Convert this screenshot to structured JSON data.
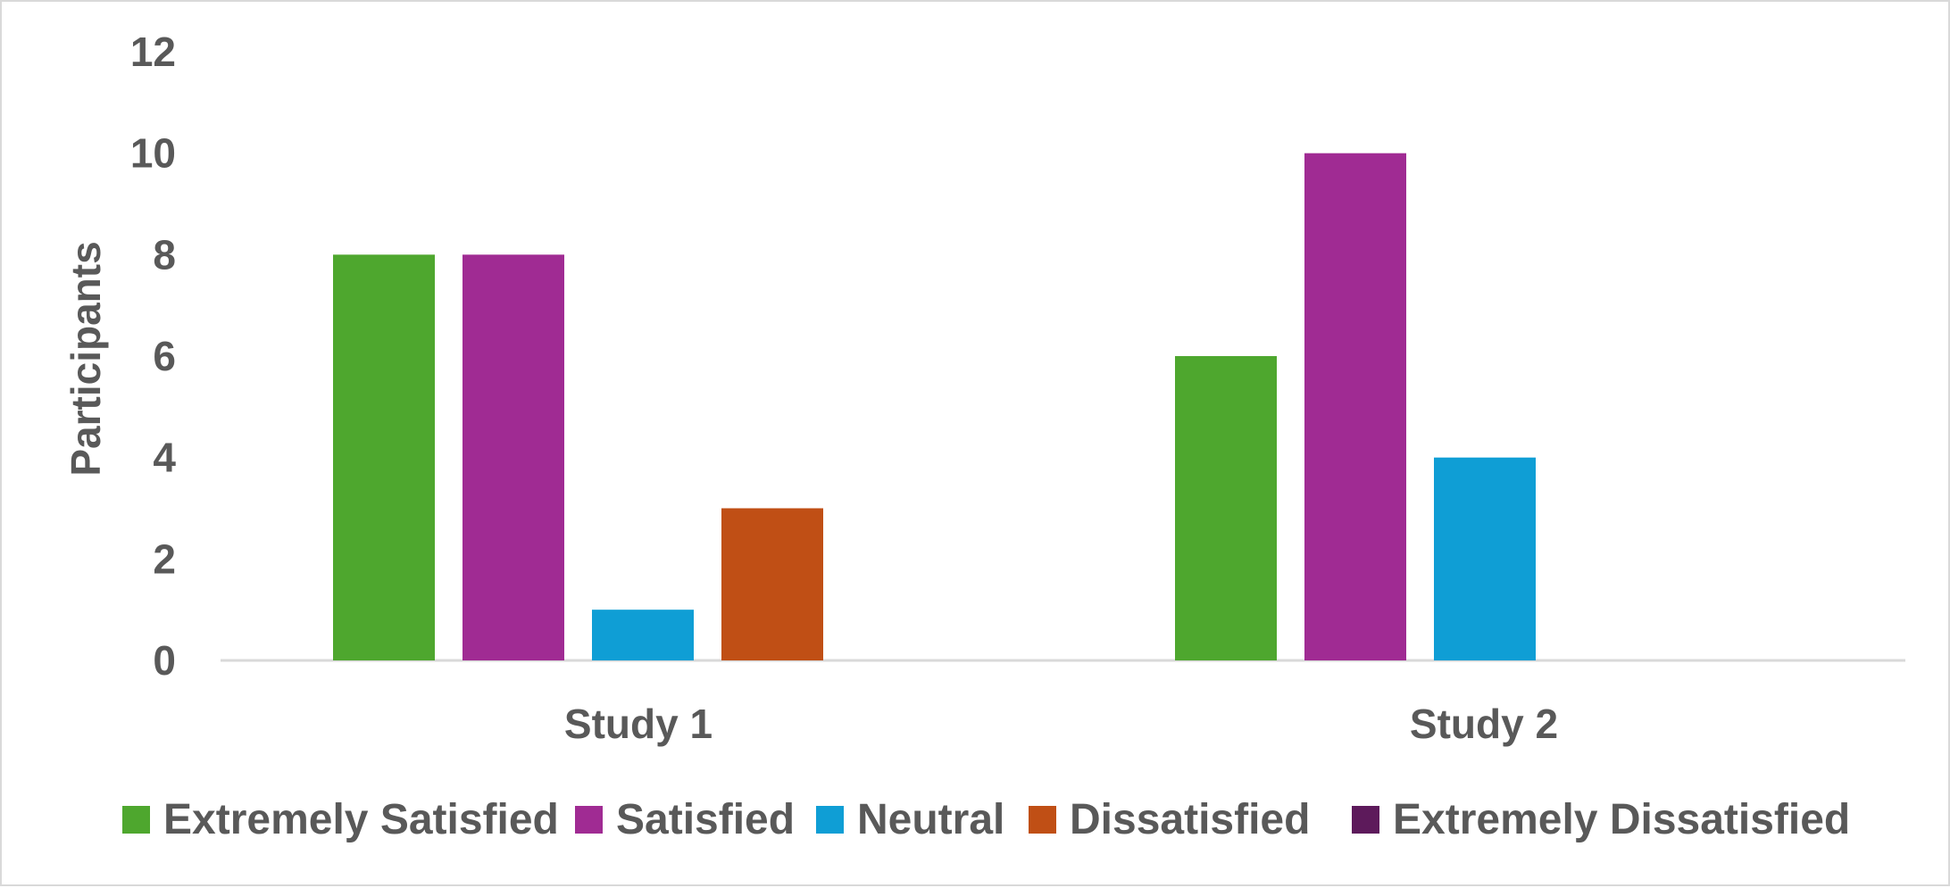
{
  "chart_data": {
    "type": "bar",
    "title": "",
    "xlabel": "",
    "ylabel": "Participants",
    "ylim": [
      0,
      12
    ],
    "yticks": [
      0,
      2,
      4,
      6,
      8,
      10,
      12
    ],
    "grid": false,
    "legend_position": "bottom",
    "categories": [
      "Study 1",
      "Study 2"
    ],
    "series": [
      {
        "name": "Extremely Satisfied",
        "color": "#4ea72e",
        "values": [
          8,
          6
        ]
      },
      {
        "name": "Satisfied",
        "color": "#a02b93",
        "values": [
          8,
          10
        ]
      },
      {
        "name": "Neutral",
        "color": "#0f9ed5",
        "values": [
          1,
          4
        ]
      },
      {
        "name": "Dissatisfied",
        "color": "#c04f15",
        "values": [
          3,
          0
        ]
      },
      {
        "name": "Extremely Dissatisfied",
        "color": "#5d1a5b",
        "values": [
          0,
          0
        ]
      }
    ]
  }
}
